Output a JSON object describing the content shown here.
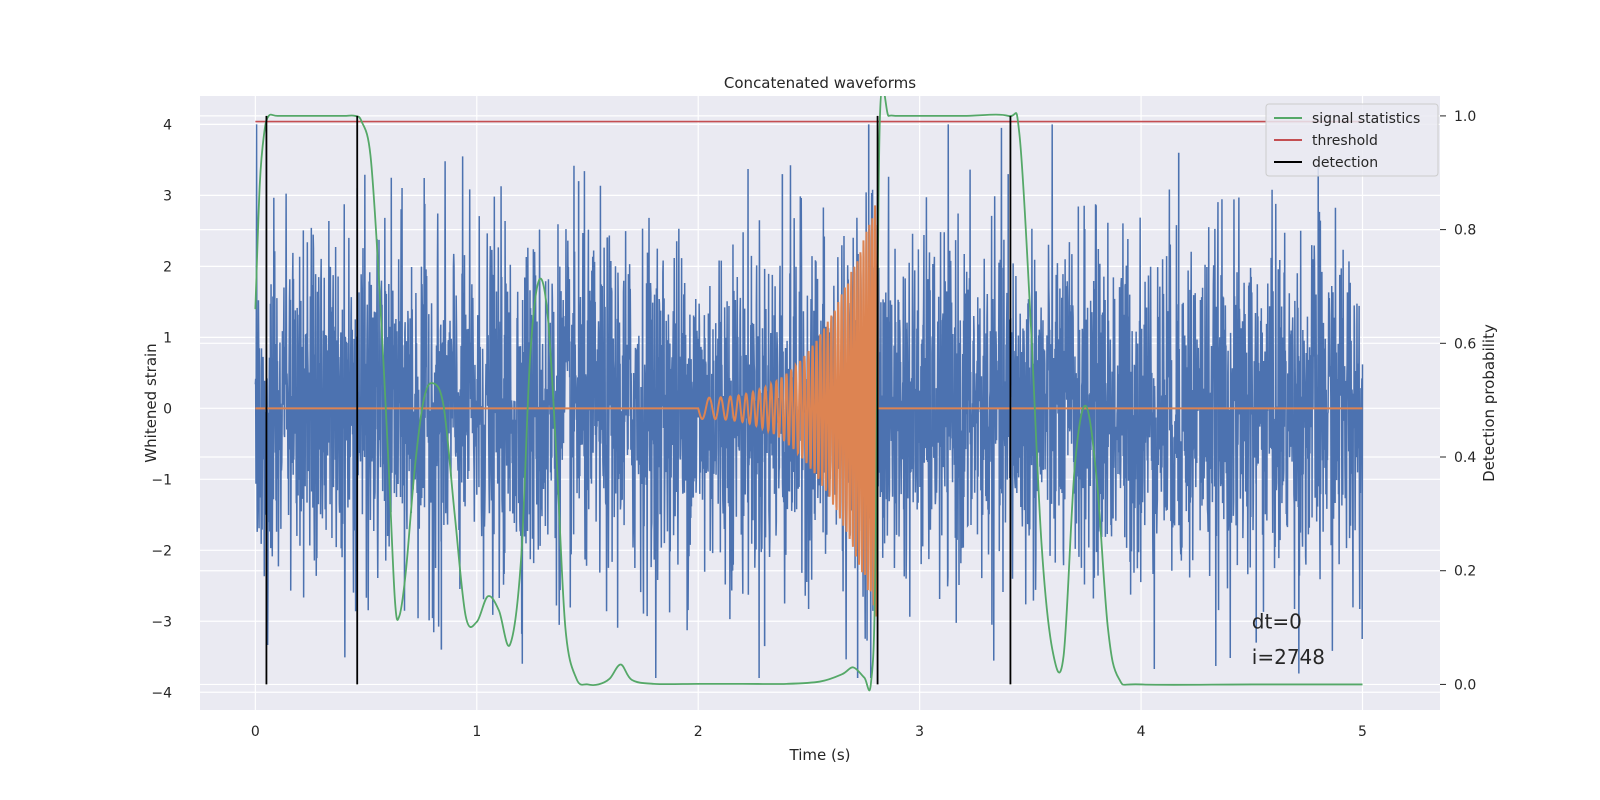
{
  "chart_data": {
    "type": "line",
    "title": "Concatenated waveforms",
    "xlabel": "Time (s)",
    "ylabel": "Whitened strain",
    "y2label": "Detection probability",
    "xlim": [
      -0.25,
      5.35
    ],
    "ylim": [
      -4.25,
      4.4
    ],
    "y2lim": [
      -0.045,
      1.035
    ],
    "xticks": [
      0,
      1,
      2,
      3,
      4,
      5
    ],
    "yticks": [
      -4,
      -3,
      -2,
      -1,
      0,
      1,
      2,
      3,
      4
    ],
    "y2ticks": [
      0.0,
      0.2,
      0.4,
      0.6,
      0.8,
      1.0
    ],
    "xtick_labels": [
      "0",
      "1",
      "2",
      "3",
      "4",
      "5"
    ],
    "ytick_labels": [
      "−4",
      "−3",
      "−2",
      "−1",
      "0",
      "1",
      "2",
      "3",
      "4"
    ],
    "y2tick_labels": [
      "0.0",
      "0.2",
      "0.4",
      "0.6",
      "0.8",
      "1.0"
    ],
    "grid": true,
    "legend_position": "top-right",
    "legend": [
      {
        "label": "signal statistics",
        "color": "#55a868"
      },
      {
        "label": "threshold",
        "color": "#c44e52"
      },
      {
        "label": "detection",
        "color": "#000000"
      }
    ],
    "colors": {
      "noise": "#4c72b0",
      "injected_signal": "#dd8452",
      "signal_statistics": "#55a868",
      "threshold": "#c44e52",
      "detection": "#000000",
      "plot_background": "#eaeaf2",
      "grid": "#ffffff"
    },
    "series": [
      {
        "role": "noise",
        "axis": "left",
        "x_range": [
          0,
          5
        ],
        "approx_envelope": {
          "typical_amplitude": 1.3,
          "min": -3.8,
          "max": 4.0
        },
        "notable_peaks": [
          {
            "x": 0.46,
            "y": 3.1
          },
          {
            "x": 1.46,
            "y": 3.2
          },
          {
            "x": 2.38,
            "y": 3.3
          },
          {
            "x": 2.77,
            "y": 4.0
          },
          {
            "x": 3.4,
            "y": 3.3
          },
          {
            "x": 4.17,
            "y": 3.6
          },
          {
            "x": 4.8,
            "y": 3.4
          },
          {
            "x": 0.84,
            "y": -3.4
          },
          {
            "x": 2.3,
            "y": -3.35
          },
          {
            "x": 2.72,
            "y": -3.8
          },
          {
            "x": 4.52,
            "y": -3.3
          }
        ]
      },
      {
        "role": "injected_signal",
        "axis": "left",
        "x_range": [
          0,
          5
        ],
        "chirp": {
          "start": 2.0,
          "end": 2.81,
          "amp_start": 0.15,
          "amp_end": 3.0,
          "freq_start": 13,
          "freq_end": 80
        }
      },
      {
        "name": "signal statistics",
        "axis": "right",
        "x": [
          0.0,
          0.02,
          0.04,
          0.06,
          0.1,
          0.2,
          0.3,
          0.4,
          0.45,
          0.48,
          0.52,
          0.56,
          0.6,
          0.63,
          0.65,
          0.68,
          0.72,
          0.76,
          0.8,
          0.85,
          0.9,
          0.95,
          1.0,
          1.05,
          1.1,
          1.15,
          1.2,
          1.24,
          1.28,
          1.32,
          1.36,
          1.4,
          1.45,
          1.5,
          1.55,
          1.6,
          1.65,
          1.7,
          1.8,
          2.0,
          2.2,
          2.4,
          2.55,
          2.65,
          2.7,
          2.75,
          2.78,
          2.8,
          2.82,
          2.86,
          2.9,
          3.0,
          3.2,
          3.4,
          3.45,
          3.5,
          3.55,
          3.6,
          3.65,
          3.7,
          3.75,
          3.8,
          3.85,
          3.9,
          4.0,
          4.5,
          5.0
        ],
        "y": [
          0.66,
          0.88,
          0.97,
          1.0,
          1.0,
          1.0,
          1.0,
          1.0,
          1.0,
          0.99,
          0.93,
          0.7,
          0.4,
          0.15,
          0.12,
          0.2,
          0.38,
          0.5,
          0.53,
          0.49,
          0.3,
          0.12,
          0.11,
          0.155,
          0.13,
          0.07,
          0.22,
          0.57,
          0.71,
          0.65,
          0.4,
          0.1,
          0.01,
          0.0,
          0.0,
          0.01,
          0.035,
          0.008,
          0.001,
          0.001,
          0.001,
          0.001,
          0.005,
          0.018,
          0.03,
          0.012,
          0.002,
          0.2,
          0.99,
          1.0,
          1.0,
          1.0,
          1.0,
          1.0,
          0.97,
          0.65,
          0.25,
          0.06,
          0.05,
          0.38,
          0.49,
          0.36,
          0.1,
          0.01,
          0.0,
          0.0,
          0.0
        ]
      },
      {
        "name": "threshold",
        "axis": "right",
        "x": [
          0,
          5
        ],
        "y": [
          0.99,
          0.99
        ]
      }
    ],
    "detections": [
      0.05,
      0.46,
      2.81,
      3.41
    ],
    "annotations": [
      {
        "text": "dt=0",
        "x": 4.5,
        "y": -3.0
      },
      {
        "text": "i=2748",
        "x": 4.5,
        "y": -3.5
      }
    ]
  }
}
